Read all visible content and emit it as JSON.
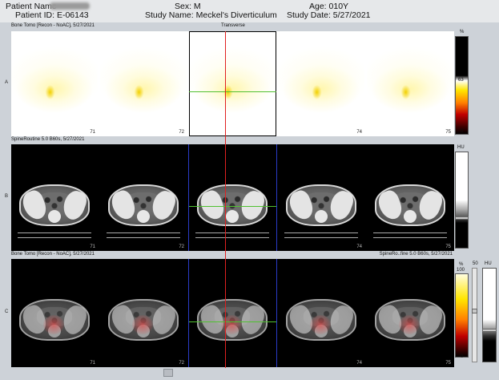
{
  "header": {
    "patient_name": "Patient Name",
    "patient_id": "Patient ID: E-06143",
    "sex": "Sex: M",
    "study_name": "Study Name: Meckel's Diverticulum",
    "age": "Age: 010Y",
    "study_date": "Study Date: 5/27/2021"
  },
  "rows": {
    "a": {
      "label": "A",
      "title": "Bone Tomo [Recon - NoAC], 5/27/2021",
      "center_title": "Transverse",
      "slices": [
        "71",
        "72",
        "",
        "74",
        "75"
      ]
    },
    "b": {
      "label": "B",
      "title": "SpineRoutine 5.0 B60s, 5/27/2021",
      "slices": [
        "71",
        "72",
        "",
        "74",
        "75"
      ]
    },
    "c": {
      "label": "C",
      "title": "Bone Tomo [Recon - NoAC], 5/27/2021",
      "title_right": "SpineRo..fine 5.0 B60s, 5/27/2021",
      "slices": [
        "71",
        "72",
        "",
        "74",
        "75"
      ]
    }
  },
  "colorbars": {
    "a": {
      "unit": "%",
      "mid": "63",
      "bottom": "0"
    },
    "b": {
      "unit": "HU"
    },
    "c": {
      "unit": "%",
      "top": "100",
      "bottom": "0",
      "mid_value": "50",
      "unit2": "HU"
    }
  },
  "colors": {
    "crosshair_vertical": "#e02020",
    "crosshair_horizontal": "#50c030",
    "ct_frame": "#2a3cc8"
  }
}
